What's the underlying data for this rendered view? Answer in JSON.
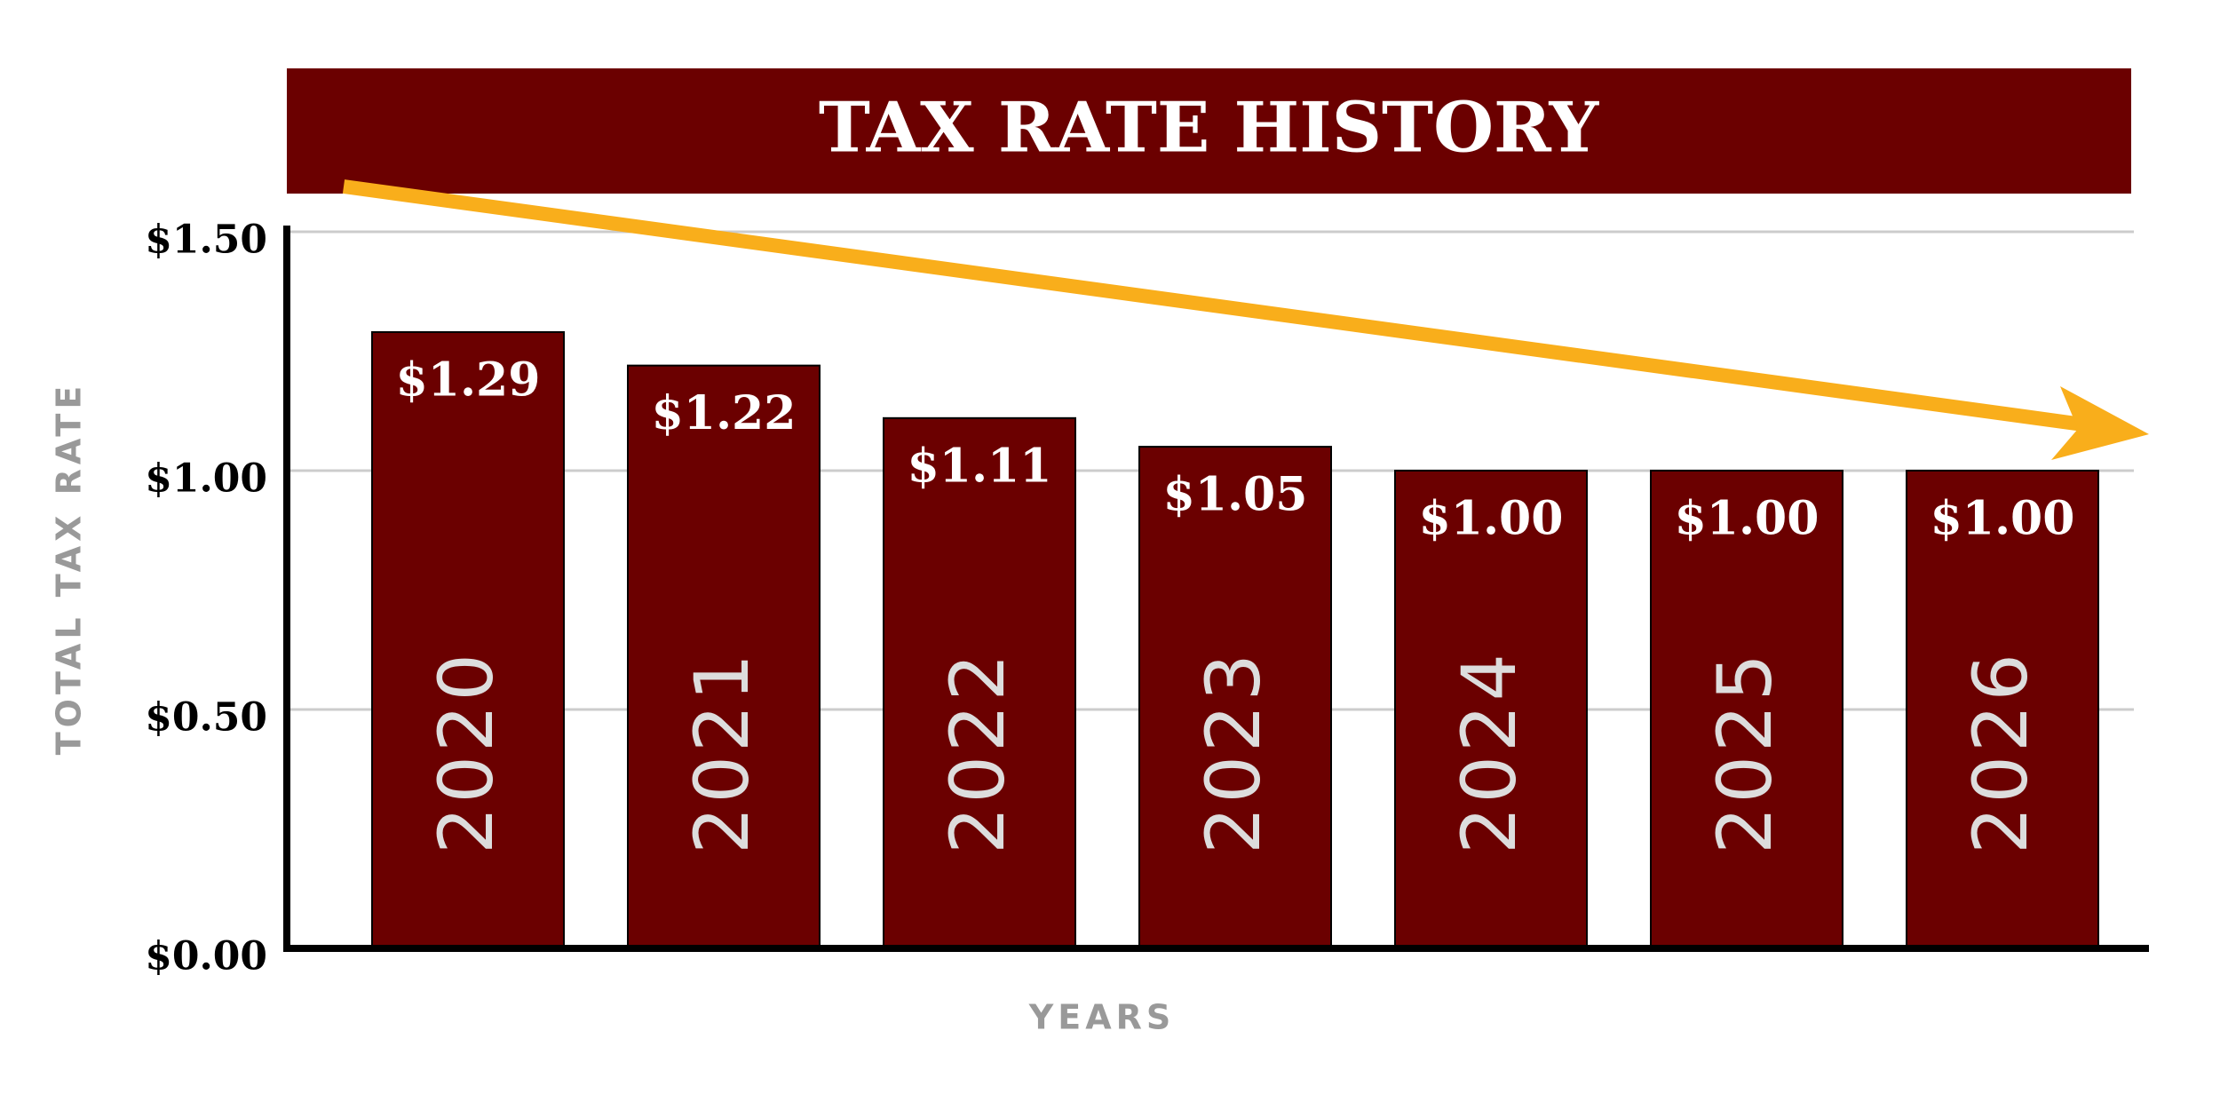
{
  "chart_data": {
    "type": "bar",
    "title": "TAX RATE HISTORY",
    "x_label": "YEARS",
    "y_label": "TOTAL TAX RATE",
    "categories": [
      "2020",
      "2021",
      "2022",
      "2023",
      "2024",
      "2025",
      "2026"
    ],
    "values": [
      1.29,
      1.22,
      1.11,
      1.05,
      1.0,
      1.0,
      1.0
    ],
    "value_labels": [
      "$1.29",
      "$1.22",
      "$1.11",
      "$1.05",
      "$1.00",
      "$1.00",
      "$1.00"
    ],
    "color": "#6b0000",
    "ylim": [
      0,
      1.5
    ],
    "yticks": [
      {
        "value": 0,
        "label": "$0.00"
      },
      {
        "value": 0.5,
        "label": "$0.50"
      },
      {
        "value": 1,
        "label": "$1.00"
      },
      {
        "value": 1.5,
        "label": "$1.50"
      }
    ],
    "grid": true
  }
}
